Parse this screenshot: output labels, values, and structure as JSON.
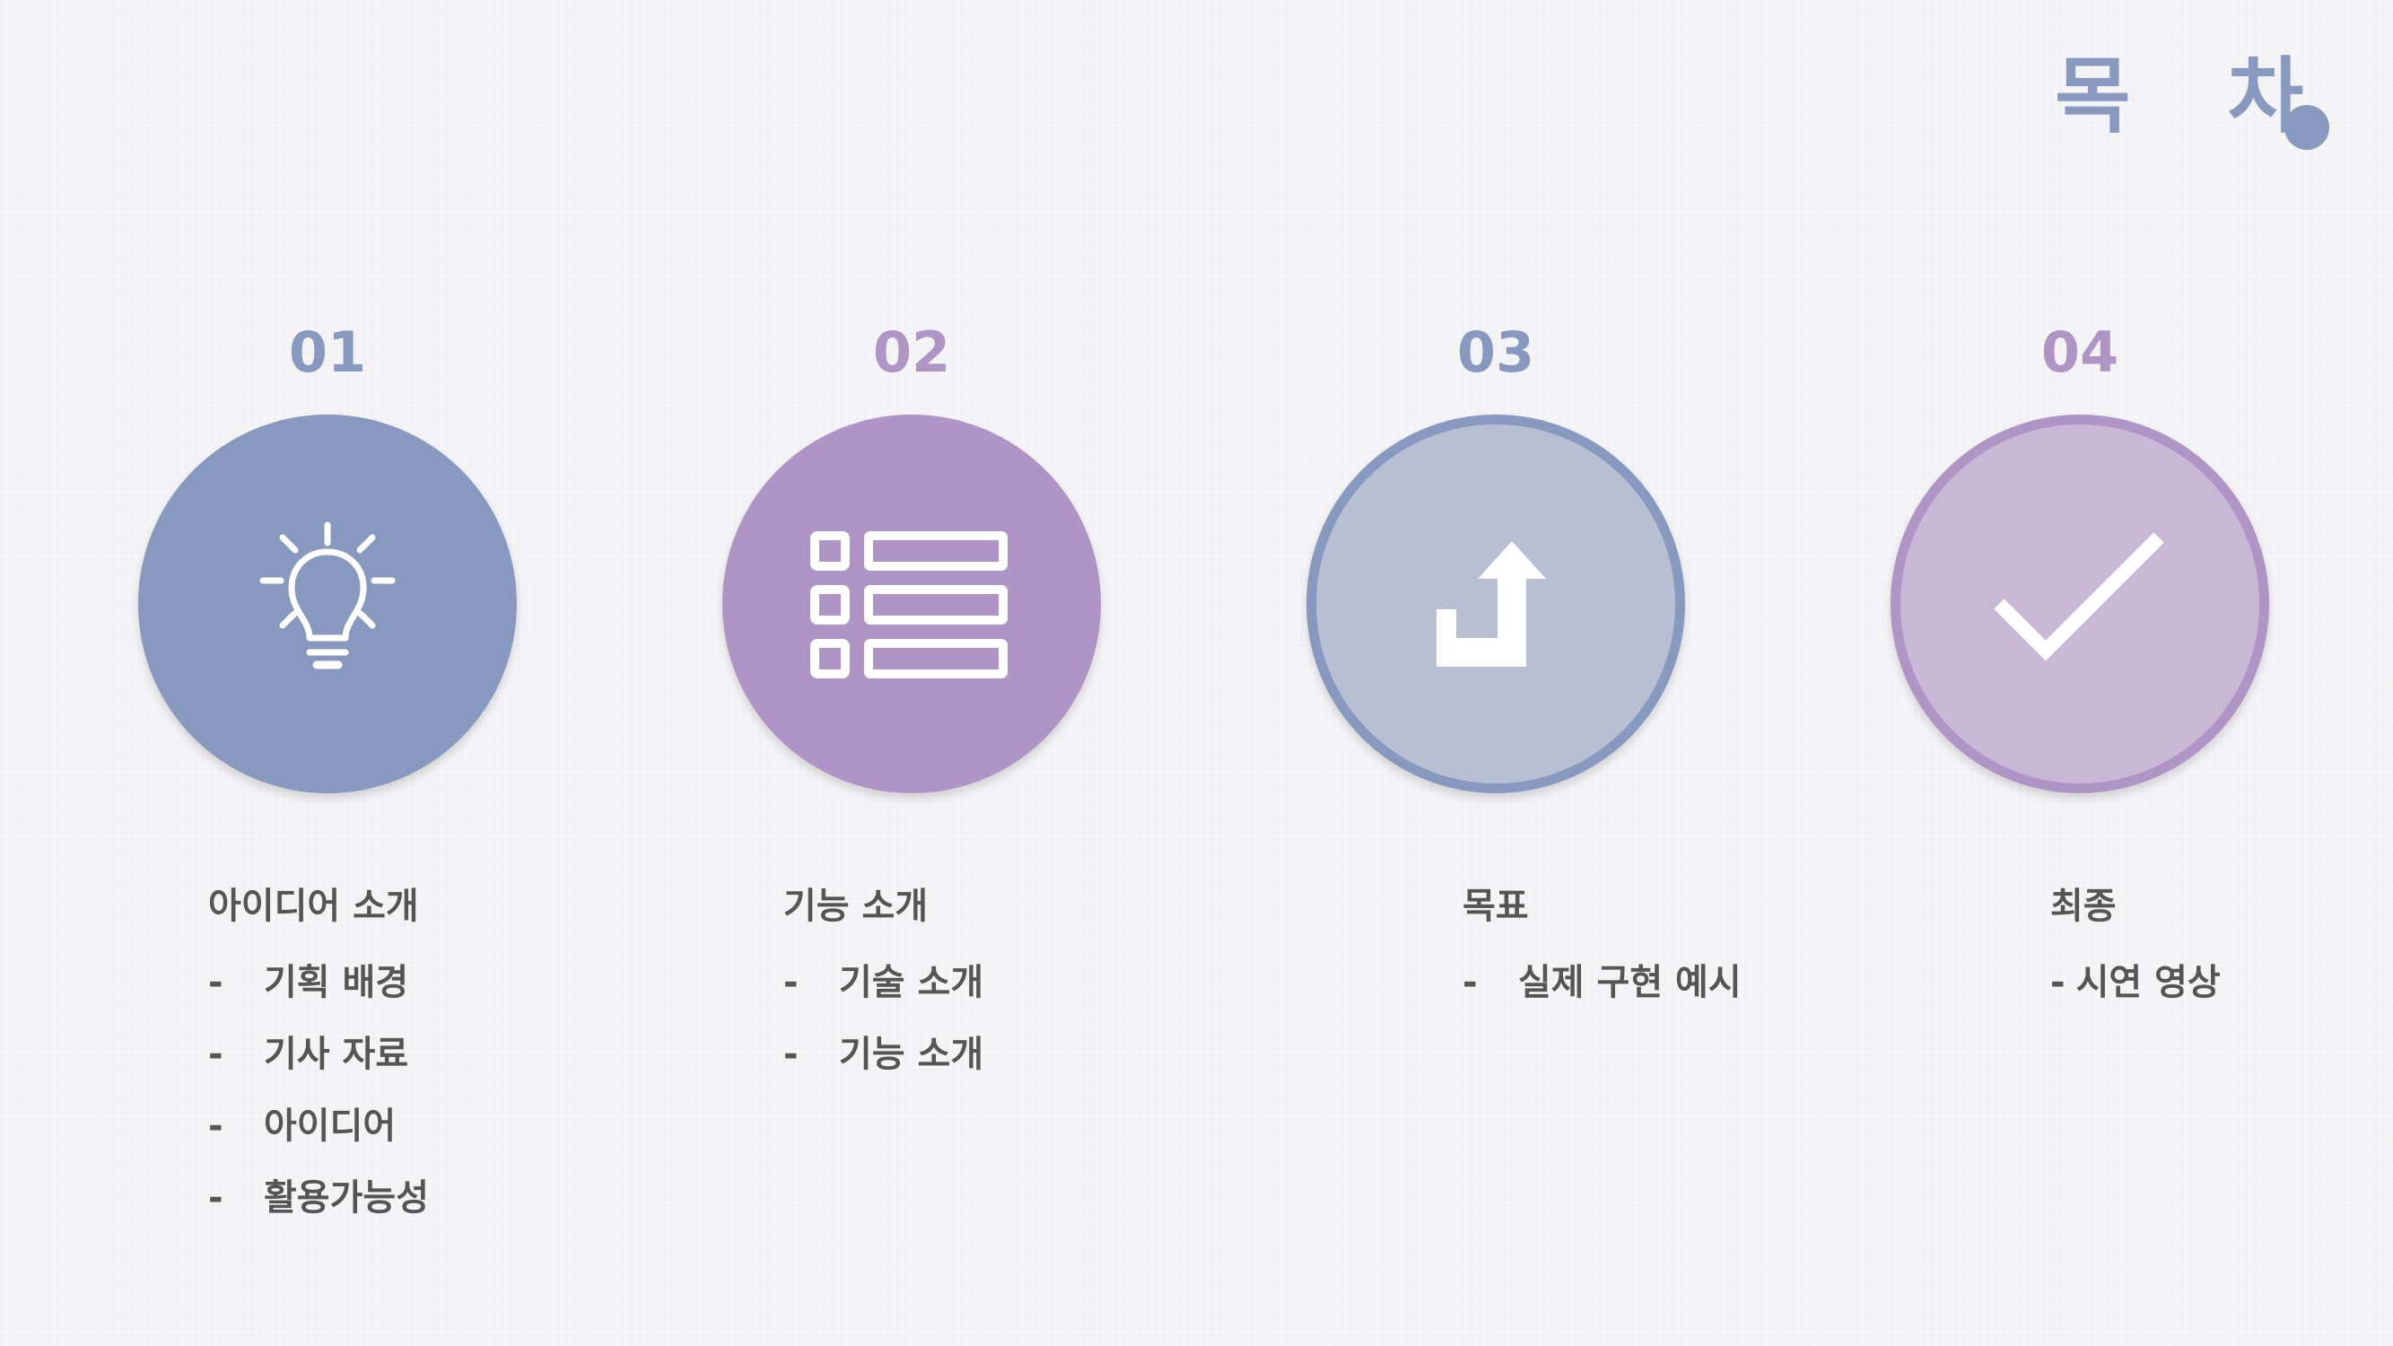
{
  "title": "목 차",
  "colors": {
    "blue": "#8899c0",
    "purple": "#ae95c6",
    "light_blue": "#b8bfd3",
    "light_purple": "#c8b8d5",
    "text": "#555555",
    "background": "#f5f5f7"
  },
  "sections": [
    {
      "number": "01",
      "icon": "lightbulb-icon",
      "title": "아이디어 소개",
      "items": [
        {
          "dash": "-",
          "text": "기획 배경"
        },
        {
          "dash": "-",
          "text": "기사 자료"
        },
        {
          "dash": "-",
          "text": "아이디어"
        },
        {
          "dash": "-",
          "text": "활용가능성"
        }
      ]
    },
    {
      "number": "02",
      "icon": "list-icon",
      "title": "기능 소개",
      "items": [
        {
          "dash": "-",
          "text": "기술 소개"
        },
        {
          "dash": "-",
          "text": "기능 소개"
        }
      ]
    },
    {
      "number": "03",
      "icon": "turn-up-arrow-icon",
      "title": "목표",
      "items": [
        {
          "dash": "-",
          "text": "실제 구현 예시"
        }
      ]
    },
    {
      "number": "04",
      "icon": "checkmark-icon",
      "title": "최종",
      "items": [
        {
          "dash": "-",
          "text": "시연 영상"
        }
      ]
    }
  ]
}
